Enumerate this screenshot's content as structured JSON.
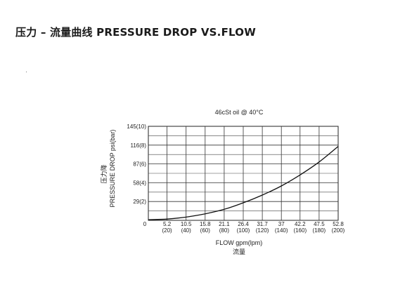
{
  "title": "压力 – 流量曲线 PRESSURE DROP VS.FLOW",
  "chart_data": {
    "type": "line",
    "subtitle": "46cSt oil @ 40°C",
    "xlabel": "FLOW gpm(lpm)",
    "xlabel_cn": "流量",
    "ylabel": "PRESSURE DROP psi(bar)",
    "ylabel_cn": "压力降",
    "origin_label": "0",
    "xlim": [
      0,
      52.8
    ],
    "ylim": [
      0,
      145
    ],
    "grid": true,
    "x_ticks": [
      {
        "value": 5.2,
        "label": "5.2",
        "sub": "(20)"
      },
      {
        "value": 10.5,
        "label": "10.5",
        "sub": "(40)"
      },
      {
        "value": 15.8,
        "label": "15.8",
        "sub": "(60)"
      },
      {
        "value": 21.1,
        "label": "21.1",
        "sub": "(80)"
      },
      {
        "value": 26.4,
        "label": "26.4",
        "sub": "(100)"
      },
      {
        "value": 31.7,
        "label": "31.7",
        "sub": "(120)"
      },
      {
        "value": 37,
        "label": "37",
        "sub": "(140)"
      },
      {
        "value": 42.2,
        "label": "42.2",
        "sub": "(160)"
      },
      {
        "value": 47.5,
        "label": "47.5",
        "sub": "(180)"
      },
      {
        "value": 52.8,
        "label": "52.8",
        "sub": "(200)"
      }
    ],
    "y_ticks": [
      {
        "value": 29,
        "label": "29(2)"
      },
      {
        "value": 58,
        "label": "58(4)"
      },
      {
        "value": 87,
        "label": "87(6)"
      },
      {
        "value": 116,
        "label": "116(8)"
      },
      {
        "value": 145,
        "label": "145(10)"
      }
    ],
    "y_minor_gridlines": [
      14.5,
      43.5,
      72.5,
      101.5,
      130.5
    ],
    "series": [
      {
        "x": [
          0,
          5.2,
          10.5,
          15.8,
          21.1,
          26.4,
          31.7,
          37,
          42.2,
          47.5,
          52.8
        ],
        "y": [
          1,
          2,
          5,
          10,
          17,
          27,
          39,
          53,
          70,
          90,
          114
        ],
        "color": "#111111"
      }
    ]
  }
}
